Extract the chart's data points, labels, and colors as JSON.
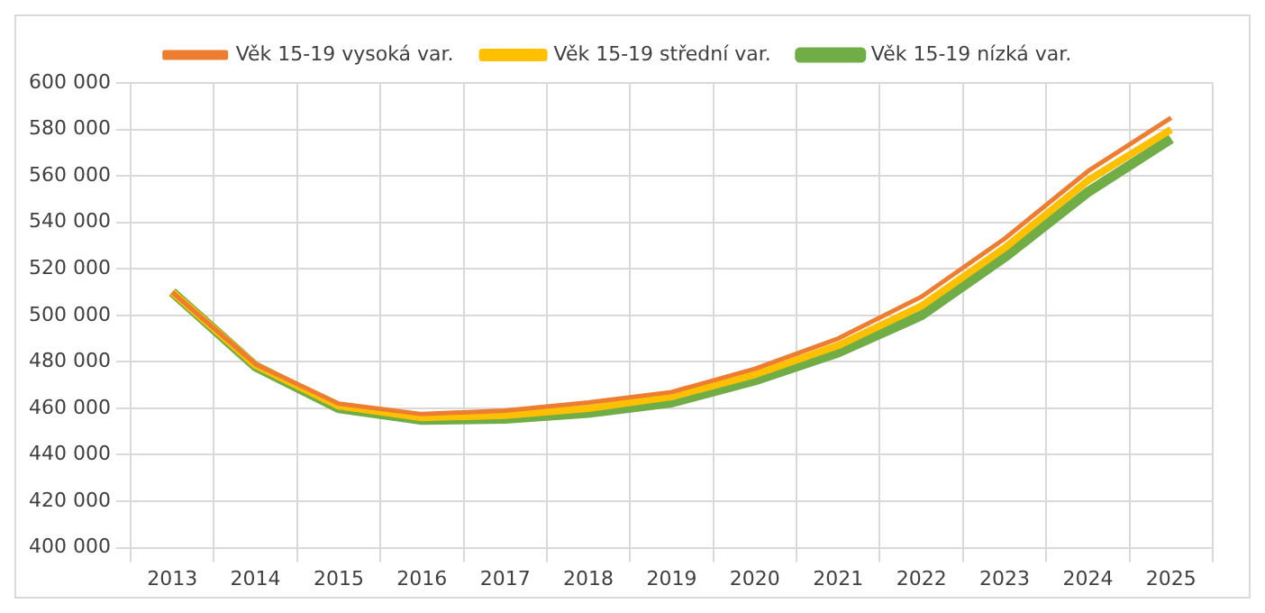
{
  "chart_data": {
    "type": "line",
    "categories": [
      "2013",
      "2014",
      "2015",
      "2016",
      "2017",
      "2018",
      "2019",
      "2020",
      "2021",
      "2022",
      "2023",
      "2024",
      "2025"
    ],
    "series": [
      {
        "name": "Věk 15-19 vysoká var.",
        "color": "#ed7d31",
        "values": [
          510000,
          479000,
          462000,
          457500,
          459000,
          462500,
          467000,
          477000,
          490000,
          508000,
          533000,
          562000,
          585000
        ]
      },
      {
        "name": "Věk 15-19 střední var.",
        "color": "#ffc000",
        "values": [
          510000,
          478500,
          461000,
          456000,
          457000,
          460000,
          465000,
          474500,
          487000,
          504000,
          529000,
          558000,
          580000
        ]
      },
      {
        "name": "Věk 15-19 nízká var.",
        "color": "#70ad47",
        "values": [
          510000,
          478000,
          460000,
          455000,
          455500,
          458000,
          462500,
          472000,
          484000,
          500000,
          525000,
          553000,
          576000
        ]
      }
    ],
    "ylim": [
      400000,
      600000
    ],
    "yticks": [
      400000,
      420000,
      440000,
      460000,
      480000,
      500000,
      520000,
      540000,
      560000,
      580000,
      600000
    ],
    "grid": true,
    "legend": "top",
    "marker": "none",
    "line_style": "solid"
  }
}
